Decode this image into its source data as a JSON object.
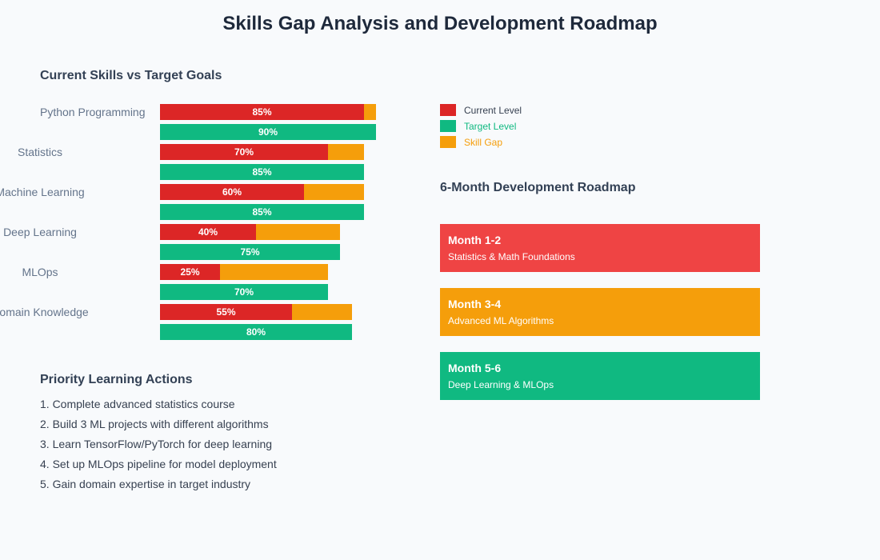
{
  "title": "Skills Gap Analysis and Development Roadmap",
  "colors": {
    "current": "#dc2626",
    "target": "#10b981",
    "gap": "#f59e0b",
    "month12": "#ef4444",
    "month34": "#f59e0b",
    "month56": "#10b981"
  },
  "chart_data": {
    "type": "bar",
    "title": "Current Skills vs Target Goals",
    "categories": [
      "Python Programming",
      "Statistics",
      "Machine Learning",
      "Deep Learning",
      "MLOps",
      "Domain Knowledge"
    ],
    "series": [
      {
        "name": "Current Level",
        "values": [
          85,
          70,
          60,
          40,
          25,
          55
        ]
      },
      {
        "name": "Target Level",
        "values": [
          90,
          85,
          85,
          75,
          70,
          80
        ]
      }
    ],
    "gap_series_name": "Skill Gap",
    "value_suffix": "%",
    "xlim": [
      0,
      100
    ],
    "legend_placement": "right"
  },
  "legend": [
    "Current Level",
    "Target Level",
    "Skill Gap"
  ],
  "roadmap": {
    "title": "6-Month Development Roadmap",
    "items": [
      {
        "month": "Month 1-2",
        "desc": "Statistics & Math Foundations"
      },
      {
        "month": "Month 3-4",
        "desc": "Advanced ML Algorithms"
      },
      {
        "month": "Month 5-6",
        "desc": "Deep Learning & MLOps"
      }
    ]
  },
  "actions": {
    "title": "Priority Learning Actions",
    "items": [
      "1. Complete advanced statistics course",
      "2. Build 3 ML projects with different algorithms",
      "3. Learn TensorFlow/PyTorch for deep learning",
      "4. Set up MLOps pipeline for model deployment",
      "5. Gain domain expertise in target industry"
    ]
  }
}
